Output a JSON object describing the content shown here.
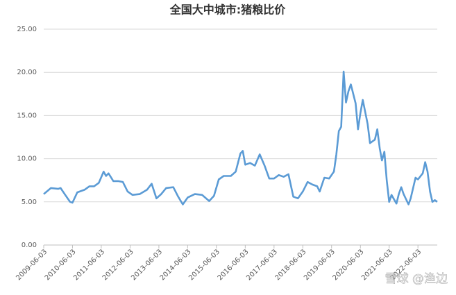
{
  "chart_data": {
    "type": "line",
    "title": "全国大中城市:猪粮比价",
    "x": [
      "2009-06-03",
      "2009-09-03",
      "2009-12-03",
      "2010-01-03",
      "2010-03-03",
      "2010-05-03",
      "2010-06-03",
      "2010-08-03",
      "2010-11-03",
      "2011-01-03",
      "2011-03-03",
      "2011-05-03",
      "2011-07-03",
      "2011-08-03",
      "2011-09-03",
      "2011-11-03",
      "2012-01-03",
      "2012-03-03",
      "2012-05-03",
      "2012-07-03",
      "2012-10-03",
      "2013-01-03",
      "2013-03-03",
      "2013-05-03",
      "2013-07-03",
      "2013-09-03",
      "2013-12-03",
      "2014-02-03",
      "2014-04-03",
      "2014-06-03",
      "2014-09-03",
      "2014-12-03",
      "2015-03-03",
      "2015-05-03",
      "2015-07-03",
      "2015-09-03",
      "2015-12-03",
      "2016-02-03",
      "2016-04-03",
      "2016-05-03",
      "2016-06-03",
      "2016-08-03",
      "2016-10-03",
      "2016-12-03",
      "2017-02-03",
      "2017-04-03",
      "2017-06-03",
      "2017-08-03",
      "2017-10-03",
      "2017-12-03",
      "2018-02-03",
      "2018-04-03",
      "2018-06-03",
      "2018-08-03",
      "2018-10-03",
      "2018-12-03",
      "2019-01-03",
      "2019-03-03",
      "2019-05-03",
      "2019-07-03",
      "2019-08-03",
      "2019-09-03",
      "2019-10-03",
      "2019-11-03",
      "2019-12-03",
      "2020-01-03",
      "2020-02-03",
      "2020-04-03",
      "2020-05-03",
      "2020-06-03",
      "2020-07-03",
      "2020-09-03",
      "2020-10-03",
      "2020-12-03",
      "2021-01-03",
      "2021-02-03",
      "2021-03-03",
      "2021-04-03",
      "2021-05-03",
      "2021-06-03",
      "2021-07-03",
      "2021-09-03",
      "2021-10-03",
      "2021-11-03",
      "2021-12-03",
      "2022-02-03",
      "2022-03-03",
      "2022-05-03",
      "2022-06-03",
      "2022-08-03",
      "2022-09-03",
      "2022-10-03",
      "2022-11-03",
      "2022-12-03",
      "2023-01-03",
      "2023-02-03"
    ],
    "series": [
      {
        "color": "#5b9bd5",
        "values": [
          5.9,
          6.6,
          6.5,
          6.6,
          5.8,
          5.0,
          4.9,
          6.1,
          6.4,
          6.8,
          6.8,
          7.2,
          8.5,
          8.0,
          8.3,
          7.4,
          7.4,
          7.3,
          6.2,
          5.8,
          5.9,
          6.4,
          7.1,
          5.4,
          5.9,
          6.6,
          6.7,
          5.6,
          4.7,
          5.5,
          5.9,
          5.8,
          5.1,
          5.7,
          7.6,
          8.0,
          8.0,
          8.5,
          10.6,
          10.9,
          9.3,
          9.5,
          9.2,
          10.5,
          9.2,
          7.7,
          7.7,
          8.1,
          7.9,
          8.2,
          5.6,
          5.4,
          6.2,
          7.3,
          7.0,
          6.8,
          6.2,
          7.8,
          7.7,
          8.5,
          10.5,
          13.2,
          13.7,
          20.1,
          16.5,
          17.8,
          18.6,
          16.4,
          13.4,
          15.3,
          16.8,
          14.0,
          11.8,
          12.2,
          13.4,
          11.2,
          9.8,
          10.8,
          7.5,
          5.0,
          5.8,
          4.8,
          5.9,
          6.7,
          5.9,
          4.7,
          5.4,
          7.8,
          7.6,
          8.3,
          9.6,
          8.5,
          6.2,
          5.0,
          5.2,
          5.0
        ]
      }
    ],
    "xlim": [
      "2009-06-03",
      "2023-02-03"
    ],
    "xticks": [
      "2009-06-03",
      "2010-06-03",
      "2011-06-03",
      "2012-06-03",
      "2013-06-03",
      "2014-06-03",
      "2015-06-03",
      "2016-06-03",
      "2017-06-03",
      "2018-06-03",
      "2019-06-03",
      "2020-06-03",
      "2021-06-03",
      "2022-06-03"
    ],
    "ylim": [
      0,
      25
    ],
    "yticks": [
      {
        "value": 0,
        "label": "0.00"
      },
      {
        "value": 5,
        "label": "5.00"
      },
      {
        "value": 10,
        "label": "10.00"
      },
      {
        "value": 15,
        "label": "15.00"
      },
      {
        "value": 20,
        "label": "20.00"
      },
      {
        "value": 25,
        "label": "25.00"
      }
    ],
    "grid": true,
    "watermark": "雪球 @渔边"
  }
}
